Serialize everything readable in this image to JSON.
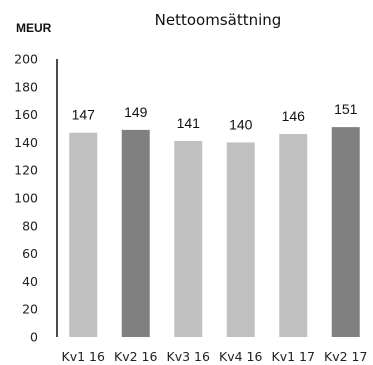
{
  "chart_data": {
    "type": "bar",
    "title": "Nettoomsättning",
    "unit_label": "MEUR",
    "xlabel": "",
    "ylabel": "",
    "categories": [
      "Kv1 16",
      "Kv2 16",
      "Kv3 16",
      "Kv4 16",
      "Kv1 17",
      "Kv2 17"
    ],
    "values": [
      147,
      149,
      141,
      140,
      146,
      151
    ],
    "data_labels": [
      "147",
      "149",
      "141",
      "140",
      "146",
      "151"
    ],
    "ylim": [
      0,
      200
    ],
    "yticks": [
      0,
      20,
      40,
      60,
      80,
      100,
      120,
      140,
      160,
      180,
      200
    ],
    "grid": false,
    "legend": "none",
    "colors": {
      "bar_default": "#c0c0c0",
      "bar_highlight": "#808080",
      "axis": "#111111"
    },
    "highlighted": [
      1,
      5
    ]
  }
}
